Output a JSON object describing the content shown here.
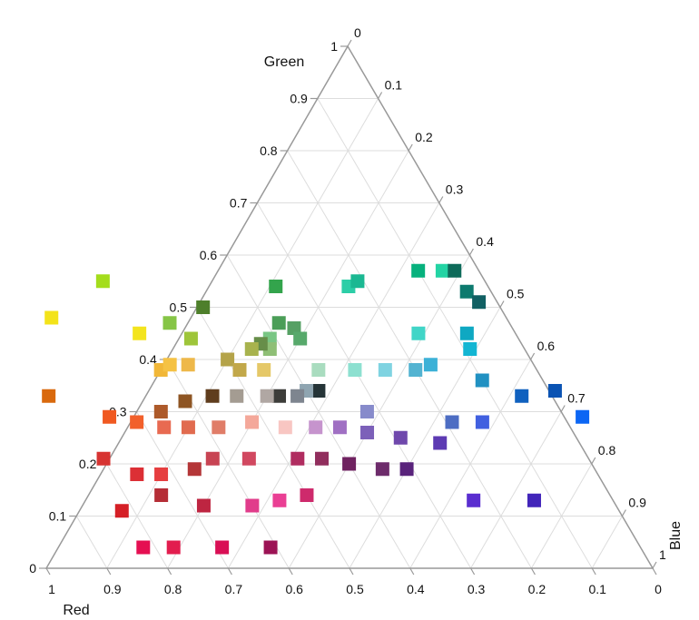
{
  "chart_data": {
    "type": "scatter",
    "subtype": "ternary",
    "marker": "square",
    "grid": true,
    "axes": {
      "green": {
        "label": "Green",
        "ticks": [
          "0",
          "0.1",
          "0.2",
          "0.3",
          "0.4",
          "0.5",
          "0.6",
          "0.7",
          "0.8",
          "0.9",
          "1"
        ]
      },
      "blue": {
        "label": "Blue",
        "ticks": [
          "0",
          "0.1",
          "0.2",
          "0.3",
          "0.4",
          "0.5",
          "0.6",
          "0.7",
          "0.8",
          "0.9",
          "1"
        ]
      },
      "red": {
        "label": "Red",
        "ticks": [
          "0",
          "0.1",
          "0.2",
          "0.3",
          "0.4",
          "0.5",
          "0.6",
          "0.7",
          "0.8",
          "0.9",
          "1"
        ]
      }
    },
    "points": [
      {
        "red": 0.63,
        "green": 0.55,
        "blue": -0.18,
        "color": "#a4dd1c"
      },
      {
        "red": 0.75,
        "green": 0.48,
        "blue": -0.23,
        "color": "#f3e31a"
      },
      {
        "red": 0.83,
        "green": 0.33,
        "blue": -0.16,
        "color": "#d9690d"
      },
      {
        "red": 0.62,
        "green": 0.45,
        "blue": -0.07,
        "color": "#f3e41e"
      },
      {
        "red": 0.56,
        "green": 0.47,
        "blue": -0.03,
        "color": "#86c546"
      },
      {
        "red": 0.54,
        "green": 0.44,
        "blue": 0.02,
        "color": "#9ec53a"
      },
      {
        "red": 0.49,
        "green": 0.5,
        "blue": 0.01,
        "color": "#4e7f2b"
      },
      {
        "red": 0.35,
        "green": 0.54,
        "blue": 0.11,
        "color": "#33a44c"
      },
      {
        "red": 0.38,
        "green": 0.47,
        "blue": 0.15,
        "color": "#4b9e58"
      },
      {
        "red": 0.41,
        "green": 0.44,
        "blue": 0.15,
        "color": "#79c684"
      },
      {
        "red": 0.36,
        "green": 0.46,
        "blue": 0.18,
        "color": "#56a064"
      },
      {
        "red": 0.36,
        "green": 0.44,
        "blue": 0.2,
        "color": "#57a96b"
      },
      {
        "red": 0.42,
        "green": 0.42,
        "blue": 0.16,
        "color": "#8fbf76"
      },
      {
        "red": 0.43,
        "green": 0.43,
        "blue": 0.14,
        "color": "#678e49"
      },
      {
        "red": 0.45,
        "green": 0.42,
        "blue": 0.13,
        "color": "#a8b34e"
      },
      {
        "red": 0.62,
        "green": 0.38,
        "blue": 0.0,
        "color": "#f1b738"
      },
      {
        "red": 0.6,
        "green": 0.39,
        "blue": 0.01,
        "color": "#f5c244"
      },
      {
        "red": 0.57,
        "green": 0.39,
        "blue": 0.04,
        "color": "#eeb84a"
      },
      {
        "red": 0.5,
        "green": 0.4,
        "blue": 0.1,
        "color": "#b4a349"
      },
      {
        "red": 0.49,
        "green": 0.38,
        "blue": 0.13,
        "color": "#c2a84a"
      },
      {
        "red": 0.45,
        "green": 0.38,
        "blue": 0.17,
        "color": "#e5c868"
      },
      {
        "red": 0.36,
        "green": 0.38,
        "blue": 0.26,
        "color": "#a9dcbf"
      },
      {
        "red": 0.3,
        "green": 0.38,
        "blue": 0.32,
        "color": "#8de0d0"
      },
      {
        "red": 0.23,
        "green": 0.54,
        "blue": 0.23,
        "color": "#2ccea7"
      },
      {
        "red": 0.21,
        "green": 0.55,
        "blue": 0.24,
        "color": "#1bb892"
      },
      {
        "red": 0.1,
        "green": 0.57,
        "blue": 0.33,
        "color": "#07b17d"
      },
      {
        "red": 0.06,
        "green": 0.57,
        "blue": 0.37,
        "color": "#23d4a4"
      },
      {
        "red": 0.04,
        "green": 0.57,
        "blue": 0.39,
        "color": "#0e6b5a"
      },
      {
        "red": 0.04,
        "green": 0.53,
        "blue": 0.43,
        "color": "#0d7a6e"
      },
      {
        "red": 0.03,
        "green": 0.51,
        "blue": 0.46,
        "color": "#116063"
      },
      {
        "red": 0.16,
        "green": 0.45,
        "blue": 0.39,
        "color": "#41d5c7"
      },
      {
        "red": 0.08,
        "green": 0.45,
        "blue": 0.47,
        "color": "#0fa8c2"
      },
      {
        "red": 0.09,
        "green": 0.42,
        "blue": 0.49,
        "color": "#13b6d3"
      },
      {
        "red": 0.17,
        "green": 0.39,
        "blue": 0.44,
        "color": "#3cb1d7"
      },
      {
        "red": 0.2,
        "green": 0.38,
        "blue": 0.42,
        "color": "#53b3d1"
      },
      {
        "red": 0.25,
        "green": 0.38,
        "blue": 0.37,
        "color": "#7fd3e1"
      },
      {
        "red": 0.1,
        "green": 0.36,
        "blue": 0.54,
        "color": "#2191c2"
      },
      {
        "red": 0.05,
        "green": 0.33,
        "blue": 0.62,
        "color": "#1061bf"
      },
      {
        "red": -0.01,
        "green": 0.34,
        "blue": 0.67,
        "color": "#0a53b3"
      },
      {
        "red": -0.03,
        "green": 0.29,
        "blue": 0.74,
        "color": "#0c66f4"
      },
      {
        "red": 0.19,
        "green": 0.28,
        "blue": 0.53,
        "color": "#4d6dc3"
      },
      {
        "red": 0.14,
        "green": 0.28,
        "blue": 0.58,
        "color": "#4160e0"
      },
      {
        "red": 0.32,
        "green": 0.3,
        "blue": 0.38,
        "color": "#878bcb"
      },
      {
        "red": 0.38,
        "green": 0.34,
        "blue": 0.28,
        "color": "#253437"
      },
      {
        "red": 0.4,
        "green": 0.34,
        "blue": 0.26,
        "color": "#8fa5b1"
      },
      {
        "red": 0.42,
        "green": 0.33,
        "blue": 0.25,
        "color": "#7e858f"
      },
      {
        "red": 0.45,
        "green": 0.33,
        "blue": 0.22,
        "color": "#3d3d3a"
      },
      {
        "red": 0.47,
        "green": 0.33,
        "blue": 0.2,
        "color": "#b0a7a3"
      },
      {
        "red": 0.52,
        "green": 0.33,
        "blue": 0.15,
        "color": "#a49c92"
      },
      {
        "red": 0.56,
        "green": 0.33,
        "blue": 0.11,
        "color": "#5f3d1d"
      },
      {
        "red": 0.61,
        "green": 0.32,
        "blue": 0.07,
        "color": "#8e5523"
      },
      {
        "red": 0.66,
        "green": 0.3,
        "blue": 0.04,
        "color": "#ad5a2a"
      },
      {
        "red": 0.75,
        "green": 0.29,
        "blue": -0.04,
        "color": "#f05921"
      },
      {
        "red": 0.71,
        "green": 0.28,
        "blue": 0.01,
        "color": "#f2602b"
      },
      {
        "red": 0.67,
        "green": 0.27,
        "blue": 0.06,
        "color": "#e86a51"
      },
      {
        "red": 0.63,
        "green": 0.27,
        "blue": 0.1,
        "color": "#e16b4f"
      },
      {
        "red": 0.58,
        "green": 0.27,
        "blue": 0.15,
        "color": "#e07d68"
      },
      {
        "red": 0.52,
        "green": 0.28,
        "blue": 0.2,
        "color": "#f4a89a"
      },
      {
        "red": 0.47,
        "green": 0.27,
        "blue": 0.26,
        "color": "#f8c6c2"
      },
      {
        "red": 0.42,
        "green": 0.27,
        "blue": 0.31,
        "color": "#c694cd"
      },
      {
        "red": 0.38,
        "green": 0.27,
        "blue": 0.35,
        "color": "#a070c3"
      },
      {
        "red": 0.34,
        "green": 0.26,
        "blue": 0.4,
        "color": "#7c60b9"
      },
      {
        "red": 0.29,
        "green": 0.25,
        "blue": 0.46,
        "color": "#6f48ac"
      },
      {
        "red": 0.23,
        "green": 0.24,
        "blue": 0.53,
        "color": "#5d3bb3"
      },
      {
        "red": 0.8,
        "green": 0.21,
        "blue": -0.01,
        "color": "#d73432"
      },
      {
        "red": 0.76,
        "green": 0.18,
        "blue": 0.06,
        "color": "#dc2f35"
      },
      {
        "red": 0.72,
        "green": 0.18,
        "blue": 0.1,
        "color": "#e63e40"
      },
      {
        "red": 0.66,
        "green": 0.19,
        "blue": 0.15,
        "color": "#b43638"
      },
      {
        "red": 0.62,
        "green": 0.21,
        "blue": 0.17,
        "color": "#c84453"
      },
      {
        "red": 0.56,
        "green": 0.21,
        "blue": 0.23,
        "color": "#d14860"
      },
      {
        "red": 0.48,
        "green": 0.21,
        "blue": 0.31,
        "color": "#b02d60"
      },
      {
        "red": 0.44,
        "green": 0.21,
        "blue": 0.35,
        "color": "#912e5d"
      },
      {
        "red": 0.4,
        "green": 0.2,
        "blue": 0.4,
        "color": "#6f2260"
      },
      {
        "red": 0.35,
        "green": 0.19,
        "blue": 0.46,
        "color": "#6d2c6b"
      },
      {
        "red": 0.31,
        "green": 0.19,
        "blue": 0.5,
        "color": "#59237b"
      },
      {
        "red": 0.82,
        "green": 0.11,
        "blue": 0.07,
        "color": "#d51f26"
      },
      {
        "red": 0.74,
        "green": 0.14,
        "blue": 0.12,
        "color": "#b52d36"
      },
      {
        "red": 0.68,
        "green": 0.12,
        "blue": 0.2,
        "color": "#be2541"
      },
      {
        "red": 0.6,
        "green": 0.12,
        "blue": 0.28,
        "color": "#e13c8b"
      },
      {
        "red": 0.55,
        "green": 0.13,
        "blue": 0.32,
        "color": "#ea3f94"
      },
      {
        "red": 0.5,
        "green": 0.14,
        "blue": 0.36,
        "color": "#ce2a6c"
      },
      {
        "red": 0.23,
        "green": 0.13,
        "blue": 0.64,
        "color": "#5a2ed0"
      },
      {
        "red": 0.13,
        "green": 0.13,
        "blue": 0.74,
        "color": "#4225ba"
      },
      {
        "red": 0.82,
        "green": 0.04,
        "blue": 0.14,
        "color": "#e50f52"
      },
      {
        "red": 0.77,
        "green": 0.04,
        "blue": 0.19,
        "color": "#e21d4e"
      },
      {
        "red": 0.69,
        "green": 0.04,
        "blue": 0.27,
        "color": "#d90f55"
      },
      {
        "red": 0.61,
        "green": 0.04,
        "blue": 0.35,
        "color": "#9c1355"
      }
    ]
  }
}
